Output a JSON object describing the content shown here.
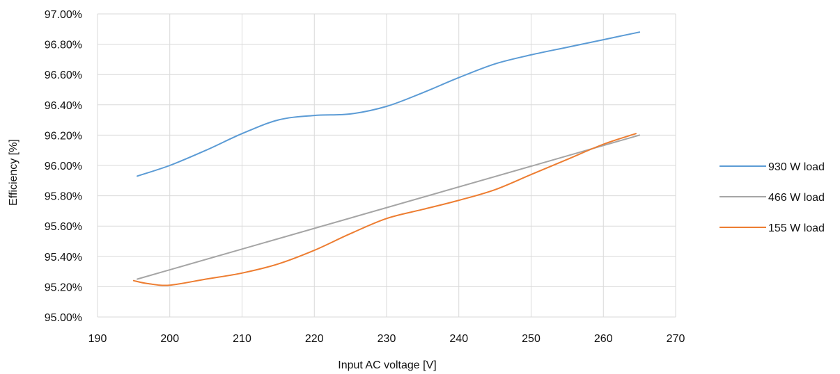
{
  "chart_data": {
    "type": "line",
    "title": "",
    "xlabel": "Input AC voltage [V]",
    "ylabel": "Efficiency [%]",
    "xlim": [
      190,
      270
    ],
    "ylim": [
      95.0,
      97.0
    ],
    "x_ticks": [
      190,
      200,
      210,
      220,
      230,
      240,
      250,
      260,
      270
    ],
    "x_tick_labels": [
      "190",
      "200",
      "210",
      "220",
      "230",
      "240",
      "250",
      "260",
      "270"
    ],
    "y_ticks": [
      95.0,
      95.2,
      95.4,
      95.6,
      95.8,
      96.0,
      96.2,
      96.4,
      96.6,
      96.8,
      97.0
    ],
    "y_tick_labels": [
      "95.00%",
      "95.20%",
      "95.40%",
      "95.60%",
      "95.80%",
      "96.00%",
      "96.20%",
      "96.40%",
      "96.60%",
      "96.80%",
      "97.00%"
    ],
    "grid": true,
    "legend_position": "right",
    "series": [
      {
        "name": "930 W load",
        "color": "#5b9bd5",
        "x": [
          195.5,
          200,
          205,
          210,
          215,
          220,
          225,
          230,
          235,
          240,
          245,
          250,
          255,
          260,
          265
        ],
        "y": [
          95.93,
          96.0,
          96.1,
          96.21,
          96.3,
          96.33,
          96.34,
          96.39,
          96.48,
          96.58,
          96.67,
          96.73,
          96.78,
          96.83,
          96.88
        ]
      },
      {
        "name": "466 W load",
        "color": "#a5a5a5",
        "x": [
          195.5,
          265
        ],
        "y": [
          95.25,
          96.2
        ]
      },
      {
        "name": "155 W load",
        "color": "#ed7d31",
        "x": [
          195,
          197,
          200,
          205,
          210,
          215,
          220,
          225,
          230,
          235,
          240,
          245,
          250,
          255,
          260,
          264.5
        ],
        "y": [
          95.24,
          95.22,
          95.21,
          95.25,
          95.29,
          95.35,
          95.44,
          95.55,
          95.65,
          95.71,
          95.77,
          95.84,
          95.94,
          96.04,
          96.14,
          96.21
        ]
      }
    ]
  }
}
